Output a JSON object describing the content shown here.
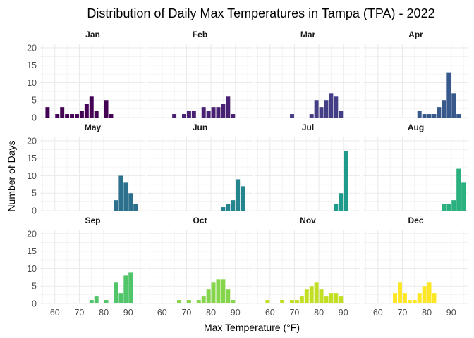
{
  "chart_data": {
    "type": "bar",
    "title": "Distribution of Daily Max Temperatures in Tampa (TPA) - 2022",
    "xlabel": "Max Temperature (°F)",
    "ylabel": "Number of Days",
    "xlim": [
      54,
      97
    ],
    "ylim": [
      0,
      21
    ],
    "x_ticks": [
      60,
      70,
      80,
      90
    ],
    "y_ticks": [
      0,
      5,
      10,
      15,
      20
    ],
    "grid": true,
    "bin_width": 2,
    "facets": [
      {
        "panel": "Jan",
        "color": "#440154",
        "bins": [
          [
            57,
            3
          ],
          [
            61,
            1
          ],
          [
            63,
            3
          ],
          [
            65,
            1
          ],
          [
            67,
            1
          ],
          [
            69,
            1
          ],
          [
            71,
            2
          ],
          [
            73,
            4
          ],
          [
            75,
            6
          ],
          [
            77,
            2
          ],
          [
            81,
            5
          ],
          [
            83,
            1
          ]
        ]
      },
      {
        "panel": "Feb",
        "color": "#482173",
        "bins": [
          [
            65,
            1
          ],
          [
            69,
            1
          ],
          [
            71,
            2
          ],
          [
            73,
            2
          ],
          [
            77,
            3
          ],
          [
            79,
            2
          ],
          [
            81,
            3
          ],
          [
            83,
            3
          ],
          [
            85,
            4
          ],
          [
            87,
            6
          ],
          [
            89,
            1
          ]
        ]
      },
      {
        "panel": "Mar",
        "color": "#433E85",
        "bins": [
          [
            69,
            1
          ],
          [
            77,
            1
          ],
          [
            79,
            5
          ],
          [
            81,
            3
          ],
          [
            83,
            5
          ],
          [
            85,
            7
          ],
          [
            87,
            6
          ],
          [
            89,
            2
          ]
        ]
      },
      {
        "panel": "Apr",
        "color": "#38598C",
        "bins": [
          [
            77,
            2
          ],
          [
            79,
            1
          ],
          [
            81,
            1
          ],
          [
            83,
            1
          ],
          [
            85,
            3
          ],
          [
            87,
            5
          ],
          [
            89,
            13
          ],
          [
            91,
            7
          ],
          [
            93,
            1
          ]
        ]
      },
      {
        "panel": "May",
        "color": "#2D708E",
        "bins": [
          [
            85,
            3
          ],
          [
            87,
            10
          ],
          [
            89,
            8
          ],
          [
            91,
            5
          ],
          [
            93,
            2
          ]
        ]
      },
      {
        "panel": "Jun",
        "color": "#25858E",
        "bins": [
          [
            85,
            1
          ],
          [
            87,
            2
          ],
          [
            89,
            3
          ],
          [
            91,
            9
          ],
          [
            93,
            7
          ]
        ]
      },
      {
        "panel": "Jul",
        "color": "#1E9B8A",
        "bins": [
          [
            87,
            2
          ],
          [
            89,
            5
          ],
          [
            91,
            17
          ]
        ]
      },
      {
        "panel": "Aug",
        "color": "#2BB07F",
        "bins": [
          [
            87,
            2
          ],
          [
            89,
            2
          ],
          [
            91,
            3
          ],
          [
            93,
            12
          ],
          [
            95,
            8
          ]
        ]
      },
      {
        "panel": "Sep",
        "color": "#51C56A",
        "bins": [
          [
            75,
            1
          ],
          [
            77,
            2
          ],
          [
            81,
            1
          ],
          [
            85,
            6
          ],
          [
            87,
            3
          ],
          [
            89,
            8
          ],
          [
            91,
            9
          ]
        ]
      },
      {
        "panel": "Oct",
        "color": "#85D54A",
        "bins": [
          [
            67,
            1
          ],
          [
            71,
            1
          ],
          [
            75,
            1
          ],
          [
            77,
            2
          ],
          [
            79,
            4
          ],
          [
            81,
            6
          ],
          [
            83,
            7
          ],
          [
            85,
            7
          ],
          [
            87,
            4
          ],
          [
            89,
            1
          ]
        ]
      },
      {
        "panel": "Nov",
        "color": "#C2DF23",
        "bins": [
          [
            59,
            1
          ],
          [
            65,
            1
          ],
          [
            69,
            1
          ],
          [
            71,
            1
          ],
          [
            73,
            2
          ],
          [
            75,
            4
          ],
          [
            77,
            5
          ],
          [
            79,
            6
          ],
          [
            81,
            4
          ],
          [
            83,
            2
          ],
          [
            85,
            3
          ],
          [
            87,
            3
          ],
          [
            89,
            2
          ]
        ]
      },
      {
        "panel": "Dec",
        "color": "#FDE725",
        "bins": [
          [
            67,
            3
          ],
          [
            69,
            6
          ],
          [
            71,
            3
          ],
          [
            73,
            1
          ],
          [
            75,
            1
          ],
          [
            77,
            3
          ],
          [
            79,
            5
          ],
          [
            81,
            6
          ],
          [
            83,
            3
          ]
        ]
      }
    ]
  }
}
